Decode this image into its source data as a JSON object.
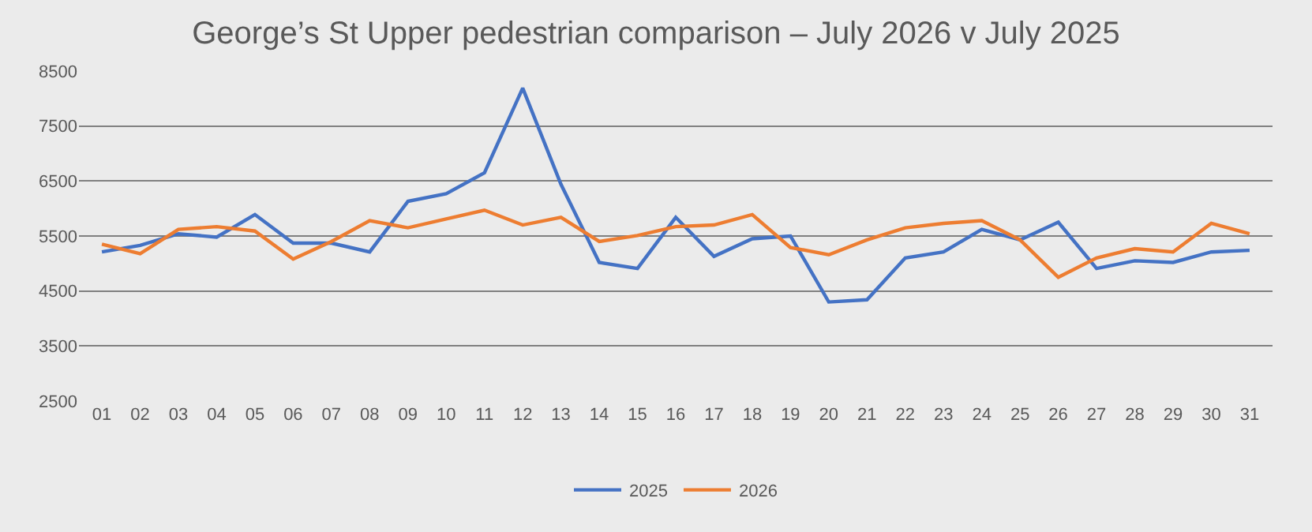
{
  "chart_data": {
    "type": "line",
    "title": "George’s St Upper pedestrian comparison – July 2026 v July 2025",
    "categories": [
      "01",
      "02",
      "03",
      "04",
      "05",
      "06",
      "07",
      "08",
      "09",
      "10",
      "11",
      "12",
      "13",
      "14",
      "15",
      "16",
      "17",
      "18",
      "19",
      "20",
      "21",
      "22",
      "23",
      "24",
      "25",
      "26",
      "27",
      "28",
      "29",
      "30",
      "31"
    ],
    "series": [
      {
        "name": "2025",
        "color": "#4472c4",
        "values": [
          5210,
          5330,
          5540,
          5480,
          5890,
          5370,
          5370,
          5210,
          6130,
          6270,
          6650,
          8190,
          6440,
          5020,
          4910,
          5840,
          5130,
          5450,
          5500,
          4300,
          4340,
          5100,
          5210,
          5620,
          5430,
          5750,
          4910,
          5050,
          5020,
          5210,
          5240
        ]
      },
      {
        "name": "2026",
        "color": "#ed7d31",
        "values": [
          5350,
          5180,
          5620,
          5670,
          5590,
          5080,
          5400,
          5780,
          5650,
          5810,
          5970,
          5700,
          5840,
          5400,
          5510,
          5670,
          5700,
          5890,
          5290,
          5160,
          5430,
          5650,
          5730,
          5780,
          5430,
          4750,
          5100,
          5270,
          5210,
          5730,
          5540
        ]
      }
    ],
    "ylim": [
      2500,
      8500
    ],
    "yticks": [
      2500,
      3500,
      4500,
      5500,
      6500,
      7500,
      8500
    ],
    "grid": "y",
    "legend": "bottom",
    "marker": "none",
    "line_style": "solid"
  }
}
